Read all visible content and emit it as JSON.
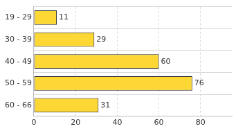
{
  "chart_data": {
    "type": "bar",
    "orientation": "horizontal",
    "categories": [
      "19 - 29",
      "30 - 39",
      "40 - 49",
      "50 - 59",
      "60 - 66"
    ],
    "values": [
      11,
      29,
      60,
      76,
      31
    ],
    "color": "#fdd835",
    "xlim": [
      0,
      95
    ],
    "xticks": [
      0,
      20,
      40,
      60,
      80
    ],
    "grid": true,
    "data_labels": true
  }
}
